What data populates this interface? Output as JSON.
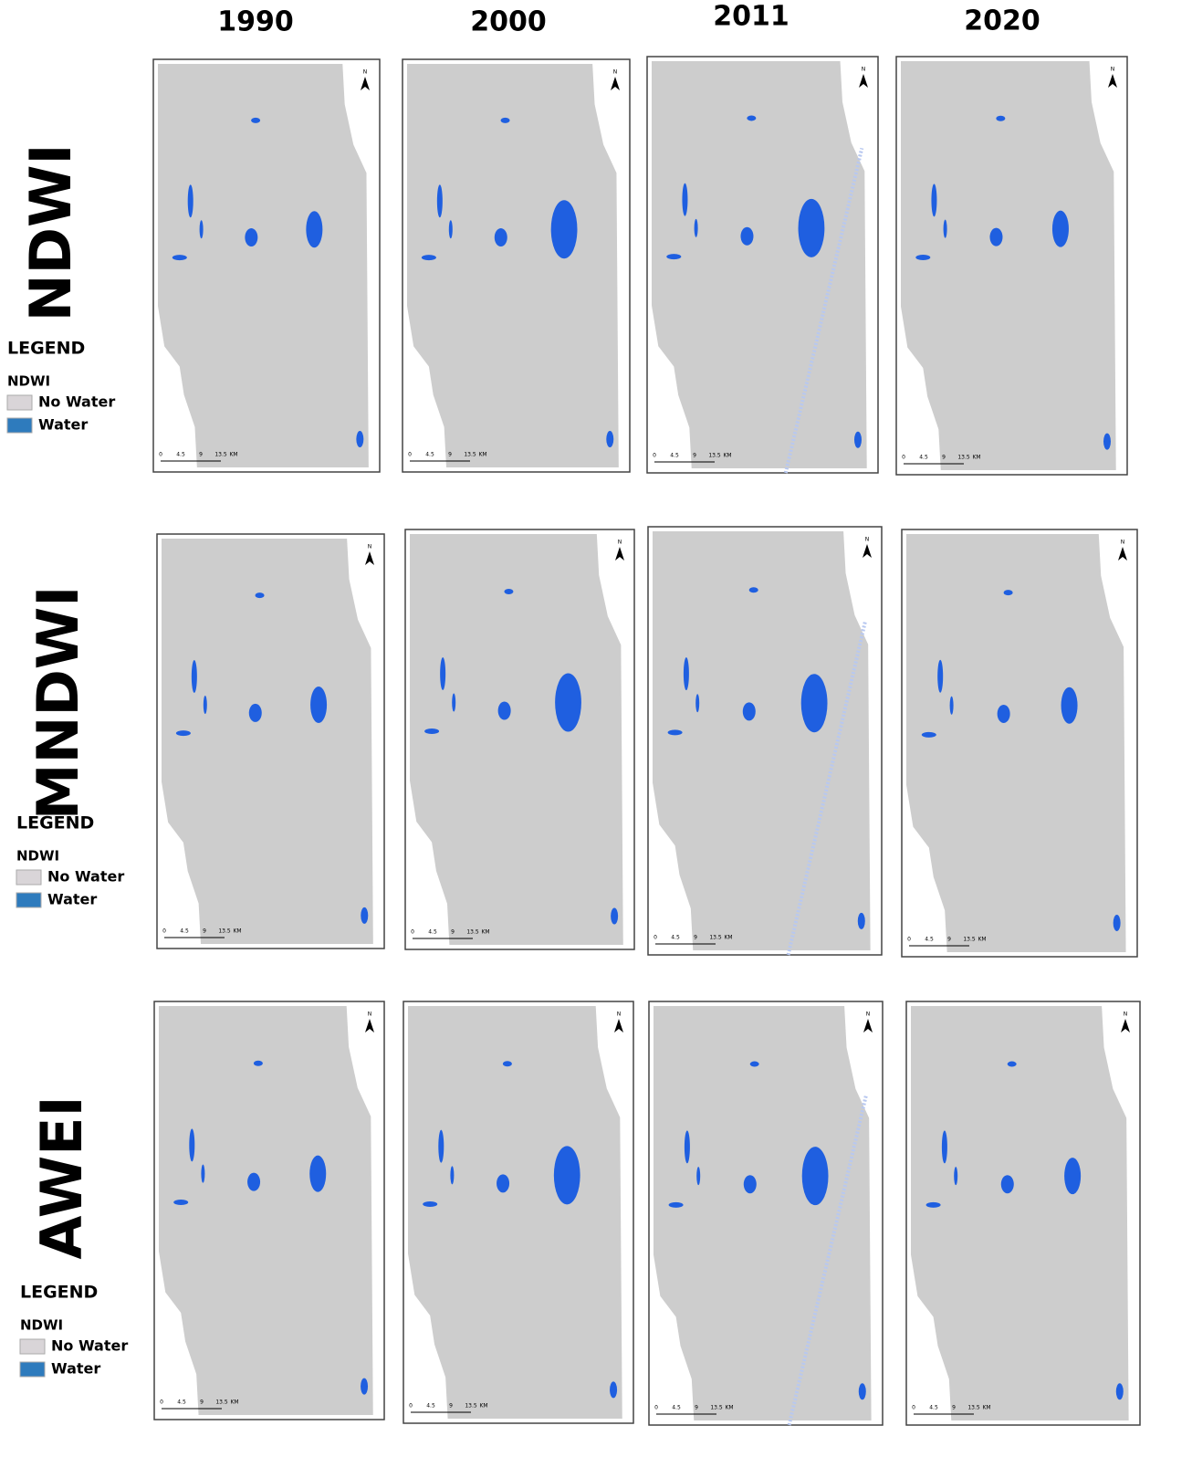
{
  "columns": [
    "1990",
    "2000",
    "2011",
    "2020"
  ],
  "rows": [
    {
      "label": "NDWI",
      "legend": {
        "title": "LEGEND",
        "subtitle": "NDWI",
        "items": [
          "No Water",
          "Water"
        ]
      }
    },
    {
      "label": "MNDWI",
      "legend": {
        "title": "LEGEND",
        "subtitle": "NDWI",
        "items": [
          "No Water",
          "Water"
        ]
      }
    },
    {
      "label": "AWEI",
      "legend": {
        "title": "LEGEND",
        "subtitle": "NDWI",
        "items": [
          "No Water",
          "Water"
        ]
      }
    }
  ],
  "scale_bar": [
    "0",
    "4.5",
    "9",
    "13.5",
    "KM"
  ],
  "north_arrow": "N"
}
